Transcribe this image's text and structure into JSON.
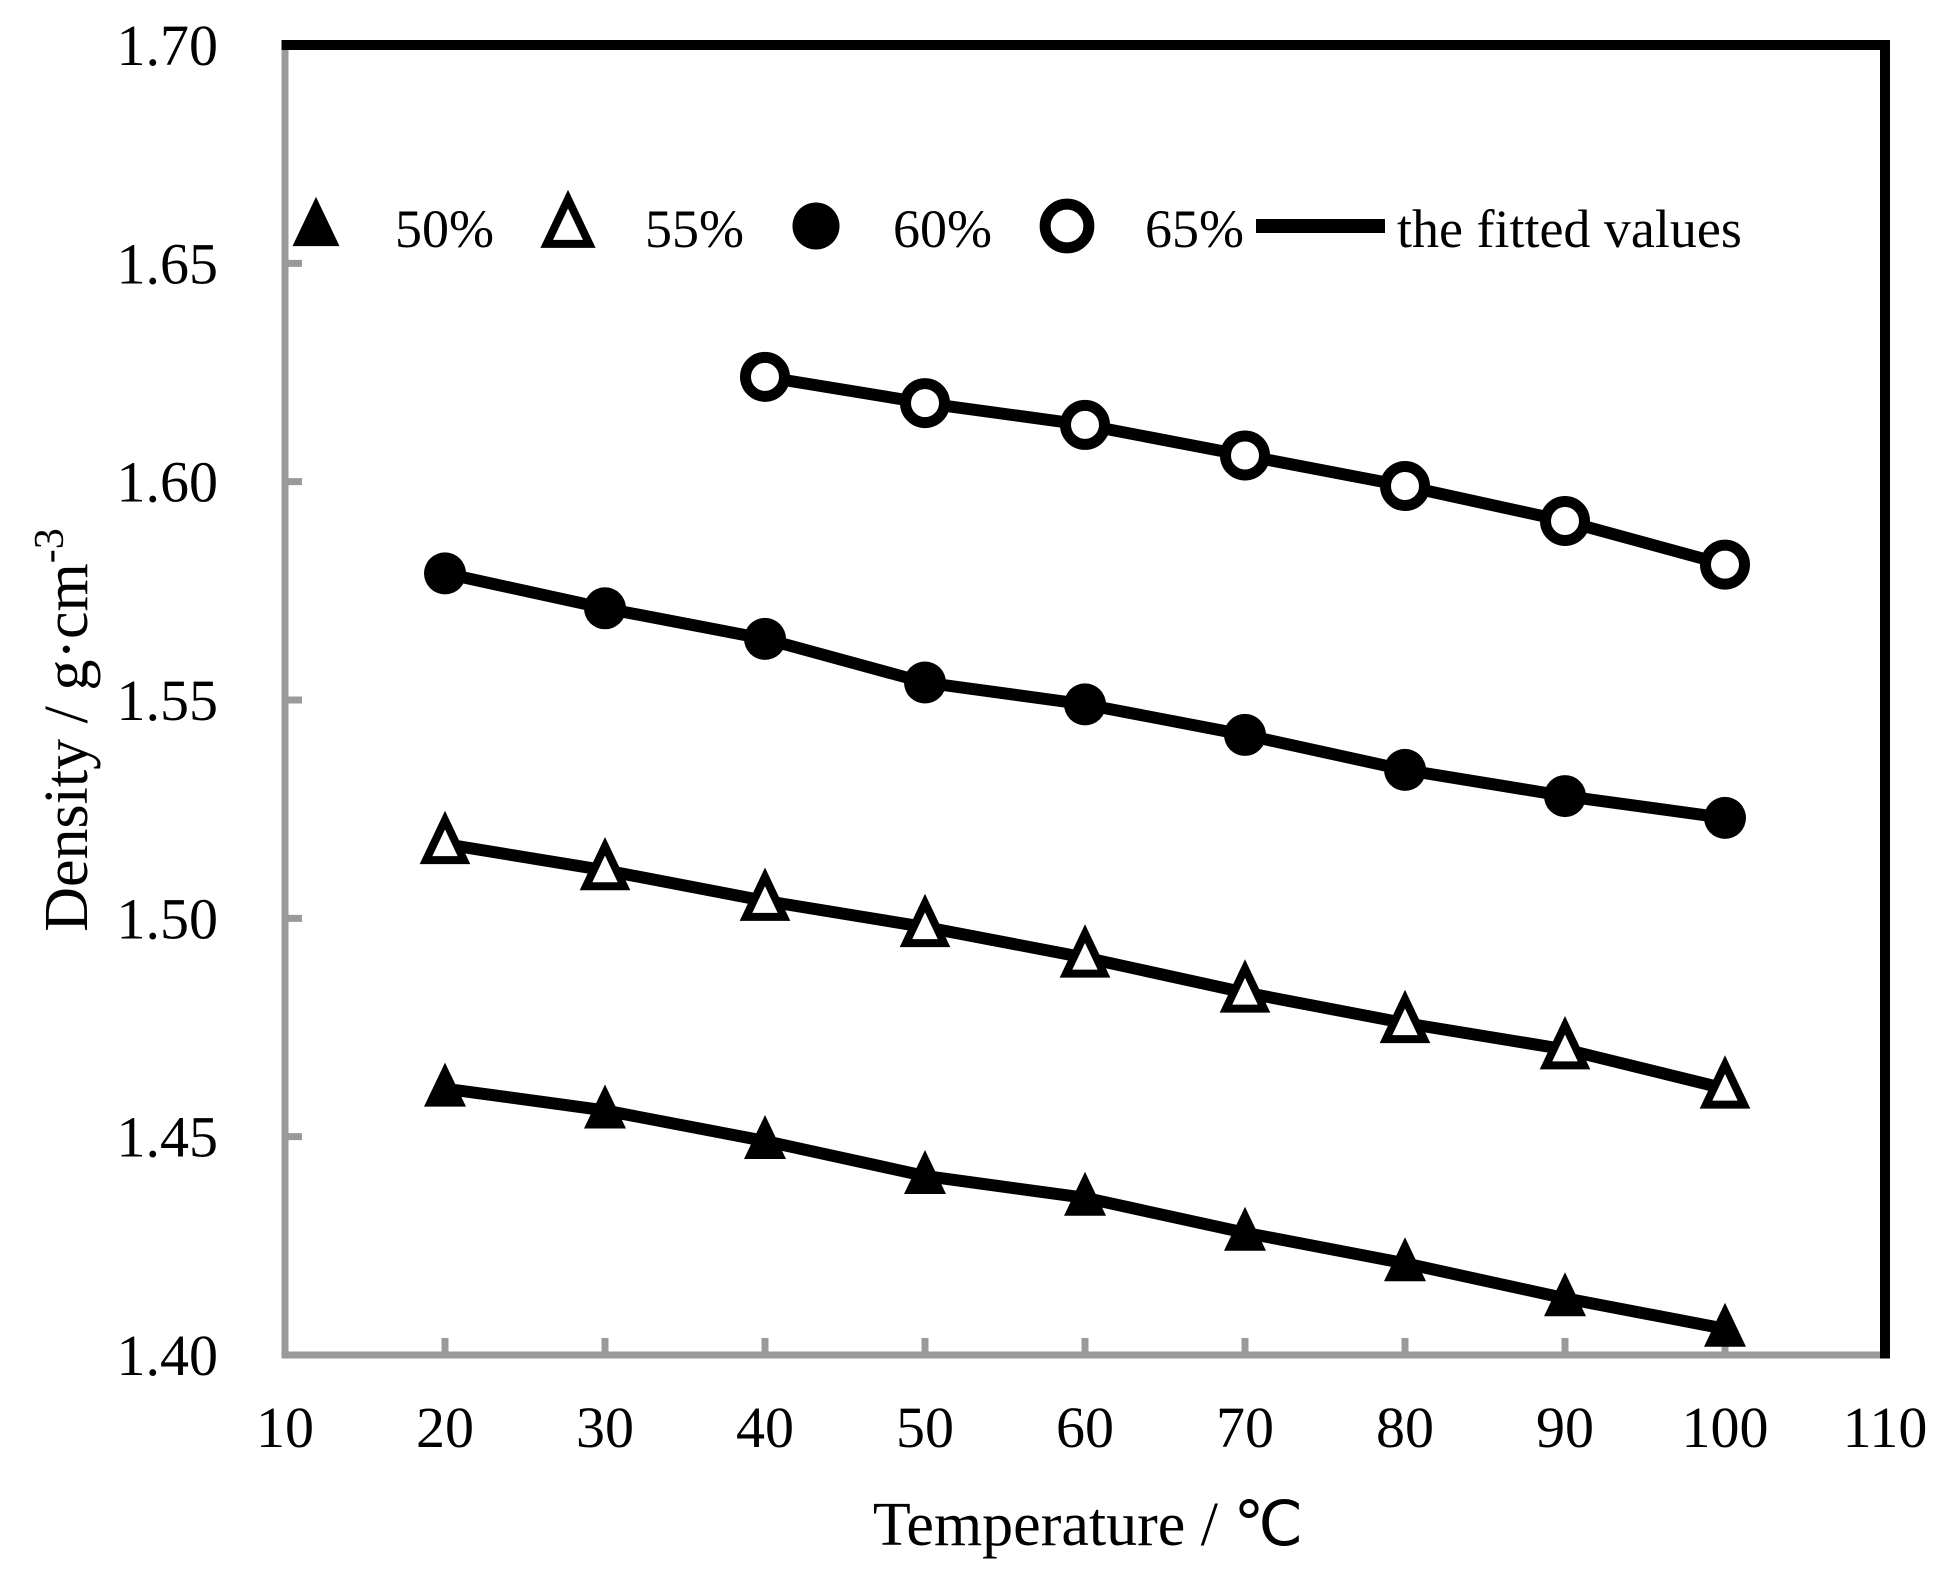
{
  "chart_data": {
    "type": "line",
    "title": "",
    "xlabel": "Temperature / ℃",
    "ylabel_base": "Density / g·cm",
    "ylabel_exponent": "-3",
    "xlim": [
      10,
      110
    ],
    "ylim": [
      1.4,
      1.7
    ],
    "xtick_values": [
      10,
      20,
      30,
      40,
      50,
      60,
      70,
      80,
      90,
      100,
      110
    ],
    "xtick_labels": [
      "10",
      "20",
      "30",
      "40",
      "50",
      "60",
      "70",
      "80",
      "90",
      "100",
      "110"
    ],
    "ytick_values": [
      1.4,
      1.45,
      1.5,
      1.55,
      1.6,
      1.65,
      1.7
    ],
    "ytick_labels": [
      "1.40",
      "1.45",
      "1.50",
      "1.55",
      "1.60",
      "1.65",
      "1.70"
    ],
    "grid": false,
    "legend_position": "top-inside",
    "series": [
      {
        "name": "50%",
        "marker": "filled-triangle",
        "x": [
          20,
          30,
          40,
          50,
          60,
          70,
          80,
          90,
          100
        ],
        "y": [
          1.461,
          1.456,
          1.449,
          1.441,
          1.436,
          1.428,
          1.421,
          1.413,
          1.406
        ]
      },
      {
        "name": "55%",
        "marker": "open-triangle",
        "x": [
          20,
          30,
          40,
          50,
          60,
          70,
          80,
          90,
          100
        ],
        "y": [
          1.517,
          1.511,
          1.504,
          1.498,
          1.491,
          1.483,
          1.476,
          1.47,
          1.461
        ]
      },
      {
        "name": "60%",
        "marker": "filled-circle",
        "x": [
          20,
          30,
          40,
          50,
          60,
          70,
          80,
          90,
          100
        ],
        "y": [
          1.579,
          1.571,
          1.564,
          1.554,
          1.549,
          1.542,
          1.534,
          1.528,
          1.523
        ]
      },
      {
        "name": "65%",
        "marker": "open-circle",
        "x": [
          40,
          50,
          60,
          70,
          80,
          90,
          100
        ],
        "y": [
          1.624,
          1.618,
          1.613,
          1.606,
          1.599,
          1.591,
          1.581
        ]
      }
    ],
    "fitted_line_label": "the fitted values",
    "colors": {
      "data": "#000000",
      "axis": "#9a9a9a",
      "border": "#000000",
      "background": "#ffffff"
    }
  },
  "legend": {
    "entries": [
      {
        "label": "50%",
        "symbol": "filled-triangle"
      },
      {
        "label": "55%",
        "symbol": "open-triangle"
      },
      {
        "label": "60%",
        "symbol": "filled-circle"
      },
      {
        "label": "65%",
        "symbol": "open-circle"
      },
      {
        "label": "the fitted values",
        "symbol": "line"
      }
    ]
  }
}
